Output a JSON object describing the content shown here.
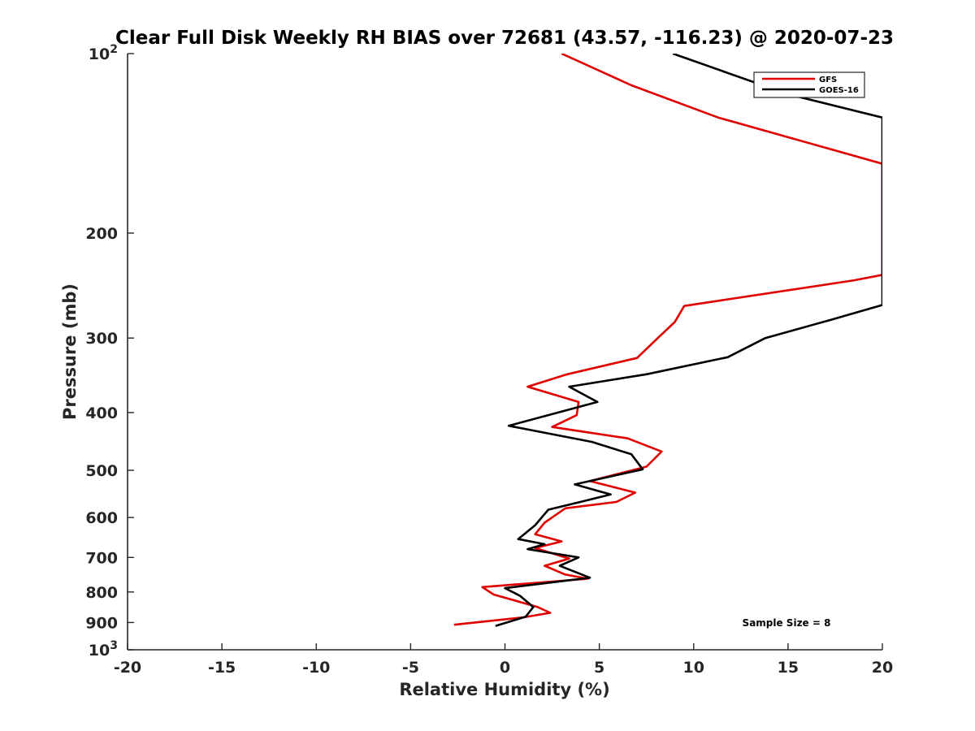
{
  "chart_data": {
    "type": "line",
    "title": "Clear Full Disk Weekly RH BIAS over 72681 (43.57, -116.23) @ 2020-07-23",
    "xlabel": "Relative Humidity (%)",
    "ylabel": "Pressure (mb)",
    "xlim": [
      -20,
      20
    ],
    "ylim": [
      100,
      1000
    ],
    "y_scale": "log",
    "y_reversed": true,
    "x_ticks": [
      -20,
      -15,
      -10,
      -5,
      0,
      5,
      10,
      15,
      20
    ],
    "x_tick_labels": [
      "-20",
      "-15",
      "-10",
      "-5",
      "0",
      "5",
      "10",
      "15",
      "20"
    ],
    "y_ticks": [
      {
        "value": 100,
        "label": "10",
        "sup": "2"
      },
      {
        "value": 200,
        "label": "200",
        "sup": ""
      },
      {
        "value": 300,
        "label": "300",
        "sup": ""
      },
      {
        "value": 400,
        "label": "400",
        "sup": ""
      },
      {
        "value": 500,
        "label": "500",
        "sup": ""
      },
      {
        "value": 600,
        "label": "600",
        "sup": ""
      },
      {
        "value": 700,
        "label": "700",
        "sup": ""
      },
      {
        "value": 800,
        "label": "800",
        "sup": ""
      },
      {
        "value": 900,
        "label": "900",
        "sup": ""
      },
      {
        "value": 1000,
        "label": "10",
        "sup": "3"
      }
    ],
    "grid": false,
    "legend_position": "top-right",
    "annotation": "Sample Size = 8",
    "series": [
      {
        "name": "GFS",
        "color": "#e00000",
        "points": [
          [
            3.0,
            100
          ],
          [
            6.7,
            113
          ],
          [
            11.3,
            128
          ],
          [
            20.0,
            153
          ],
          [
            20.0,
            235
          ],
          [
            18.5,
            240
          ],
          [
            9.5,
            265
          ],
          [
            9.0,
            282
          ],
          [
            8.1,
            300
          ],
          [
            7.0,
            324
          ],
          [
            3.3,
            345
          ],
          [
            1.2,
            362
          ],
          [
            3.9,
            384
          ],
          [
            3.8,
            404
          ],
          [
            2.5,
            423
          ],
          [
            6.5,
            442
          ],
          [
            8.3,
            465
          ],
          [
            7.5,
            493
          ],
          [
            4.5,
            521
          ],
          [
            6.9,
            545
          ],
          [
            5.9,
            565
          ],
          [
            3.2,
            579
          ],
          [
            2.1,
            612
          ],
          [
            1.6,
            640
          ],
          [
            3.0,
            658
          ],
          [
            1.6,
            675
          ],
          [
            3.4,
            703
          ],
          [
            2.1,
            723
          ],
          [
            3.2,
            748
          ],
          [
            4.4,
            760
          ],
          [
            -1.2,
            785
          ],
          [
            -0.6,
            808
          ],
          [
            1.7,
            847
          ],
          [
            2.4,
            867
          ],
          [
            1.0,
            882
          ],
          [
            -2.7,
            908
          ]
        ]
      },
      {
        "name": "GOES-16",
        "color": "#000000",
        "points": [
          [
            8.9,
            100
          ],
          [
            15.0,
            117
          ],
          [
            20.0,
            128
          ],
          [
            20.0,
            264
          ],
          [
            17.2,
            280
          ],
          [
            13.8,
            300
          ],
          [
            11.8,
            323
          ],
          [
            7.5,
            345
          ],
          [
            3.4,
            362
          ],
          [
            4.9,
            384
          ],
          [
            0.2,
            421
          ],
          [
            4.6,
            448
          ],
          [
            6.7,
            470
          ],
          [
            7.3,
            498
          ],
          [
            3.7,
            528
          ],
          [
            5.6,
            549
          ],
          [
            4.3,
            562
          ],
          [
            2.3,
            582
          ],
          [
            1.6,
            618
          ],
          [
            0.7,
            652
          ],
          [
            2.1,
            665
          ],
          [
            1.2,
            678
          ],
          [
            3.9,
            700
          ],
          [
            2.9,
            723
          ],
          [
            4.5,
            757
          ],
          [
            0.0,
            788
          ],
          [
            0.8,
            812
          ],
          [
            1.5,
            848
          ],
          [
            1.1,
            880
          ],
          [
            -0.5,
            912
          ]
        ]
      }
    ]
  },
  "legend": {
    "items": [
      {
        "label": "GFS",
        "color": "#e00000"
      },
      {
        "label": "GOES-16",
        "color": "#000000"
      }
    ]
  }
}
